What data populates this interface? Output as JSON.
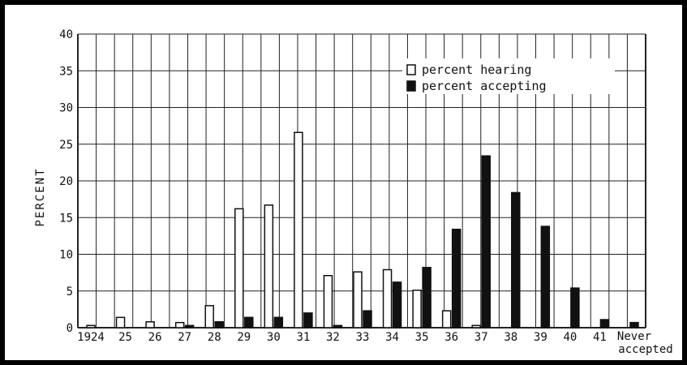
{
  "chart_data": {
    "type": "bar",
    "ylabel": "PERCENT",
    "ylim": [
      0,
      40
    ],
    "yticks": [
      0,
      5,
      10,
      15,
      20,
      25,
      30,
      35,
      40
    ],
    "grid": true,
    "legend_position": "top-right",
    "categories": [
      "1924",
      "25",
      "26",
      "27",
      "28",
      "29",
      "30",
      "31",
      "32",
      "33",
      "34",
      "35",
      "36",
      "37",
      "38",
      "39",
      "40",
      "41",
      "Never accepted"
    ],
    "series": [
      {
        "name": "percent hearing",
        "fill": "#ffffff",
        "values": [
          0.3,
          1.4,
          0.8,
          0.7,
          3.0,
          16.2,
          16.7,
          26.6,
          7.1,
          7.6,
          7.9,
          5.1,
          2.3,
          0.3,
          0,
          0,
          0,
          0,
          0
        ]
      },
      {
        "name": "percent accepting",
        "fill": "#111111",
        "values": [
          0,
          0,
          0,
          0.3,
          0.8,
          1.4,
          1.4,
          2.0,
          0.3,
          2.3,
          6.2,
          8.2,
          13.4,
          23.4,
          18.4,
          13.8,
          5.4,
          1.1,
          0.7
        ]
      }
    ]
  }
}
